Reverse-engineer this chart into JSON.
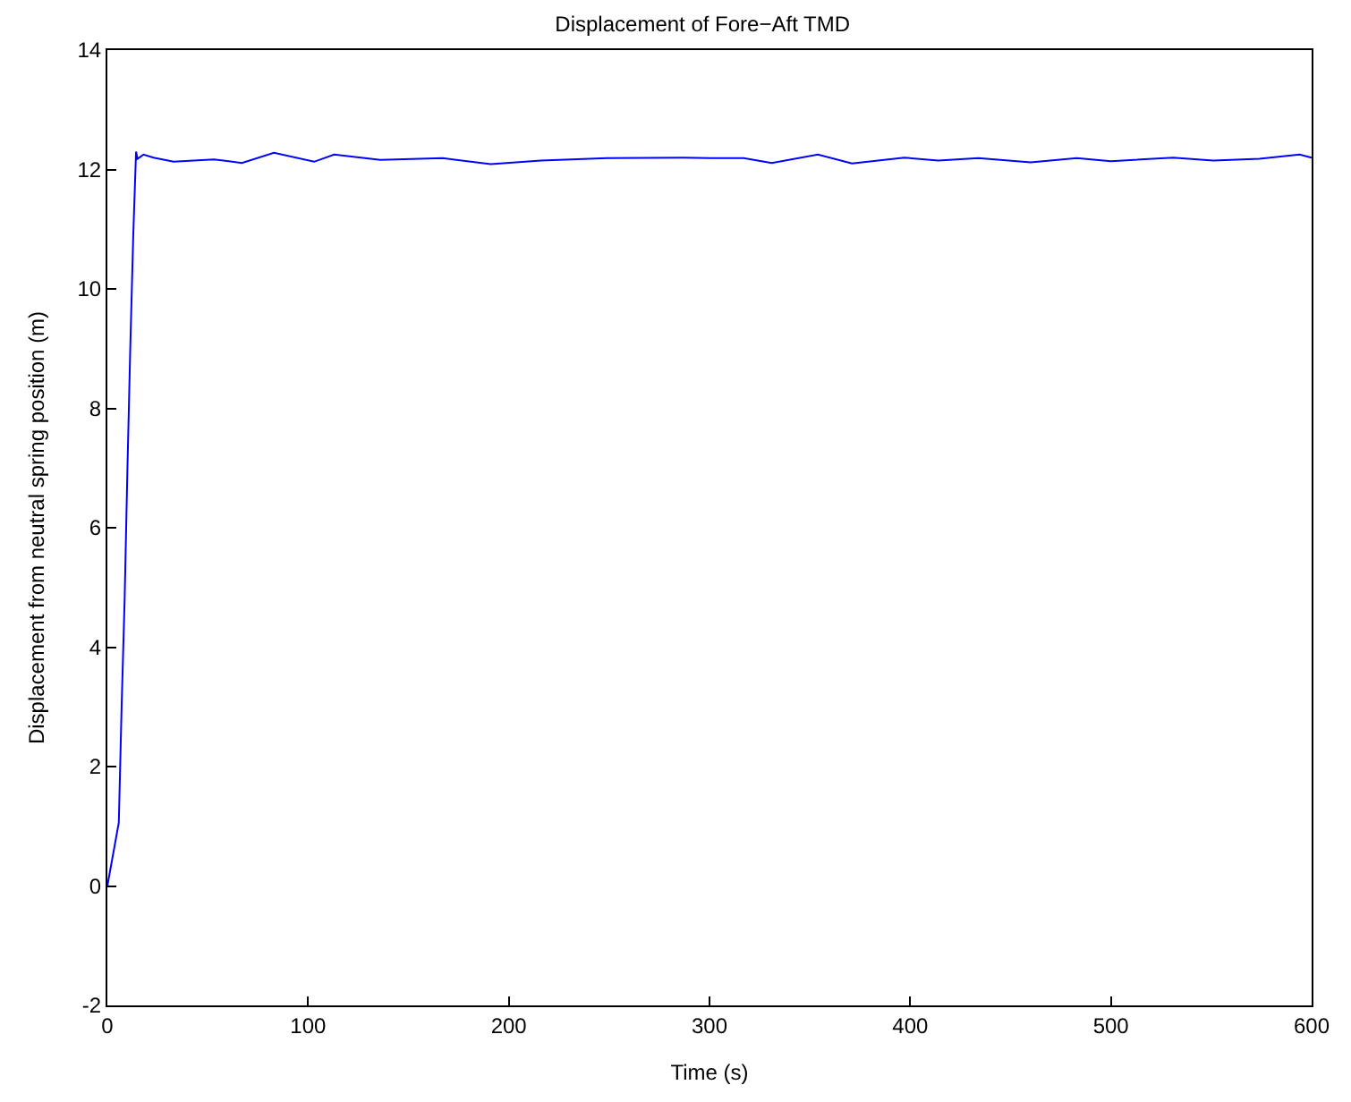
{
  "chart_data": {
    "type": "line",
    "title": "Displacement of Fore−Aft TMD",
    "xlabel": "Time (s)",
    "ylabel": "Displacement from neutral spring position (m)",
    "x": [
      0,
      5.7,
      7.1,
      8.6,
      10,
      11.4,
      12.9,
      14.3,
      15,
      18,
      23,
      33,
      53,
      67,
      83,
      103,
      113,
      136,
      167,
      191,
      216,
      249,
      287,
      300,
      317,
      331,
      354,
      371,
      397,
      414,
      434,
      460,
      483,
      500,
      531,
      551,
      574,
      594,
      600
    ],
    "series": [
      {
        "color": "#0000ff",
        "values": [
          0,
          1.06,
          3,
          4.8,
          7,
          9,
          10.9,
          12.3,
          12.18,
          12.25,
          12.2,
          12.13,
          12.17,
          12.11,
          12.28,
          12.13,
          12.25,
          12.16,
          12.19,
          12.09,
          12.15,
          12.19,
          12.2,
          12.19,
          12.19,
          12.11,
          12.25,
          12.1,
          12.2,
          12.15,
          12.19,
          12.12,
          12.19,
          12.14,
          12.2,
          12.15,
          12.18,
          12.25,
          12.2
        ]
      }
    ],
    "xlim": [
      0,
      600
    ],
    "xticks": [
      0,
      100,
      200,
      300,
      400,
      500,
      600
    ],
    "ylim": [
      -2,
      14
    ],
    "yticks": [
      -2,
      0,
      2,
      4,
      6,
      8,
      10,
      12,
      14
    ],
    "marker": "none",
    "line_style": "solid"
  }
}
